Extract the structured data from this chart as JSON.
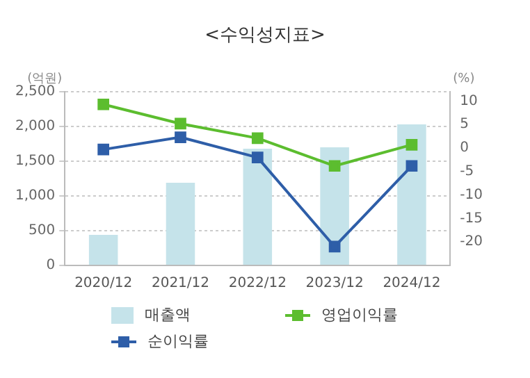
{
  "chart_data": {
    "type": "bar",
    "title": "<수익성지표>",
    "ylabel": "(억원)",
    "y2label": "(%)",
    "categories": [
      "2020/12",
      "2021/12",
      "2022/12",
      "2023/12",
      "2024/12"
    ],
    "series": [
      {
        "name": "매출액",
        "color": "#c5e3ea",
        "values": [
          440,
          1190,
          1680,
          1700,
          2030
        ]
      },
      {
        "name": "영업이익률",
        "type": "line",
        "axis": "y2",
        "color": "#5cbd2f",
        "values": [
          9.3,
          5.2,
          2.1,
          -3.8,
          0.7
        ]
      },
      {
        "name": "순이익률",
        "type": "line",
        "axis": "y2",
        "color": "#2e5ea8",
        "values": [
          -0.3,
          2.3,
          -2.0,
          -21,
          -3.8
        ]
      }
    ],
    "ylim": [
      0,
      2500
    ],
    "yticks": [
      0,
      500,
      {
        "value": 1000,
        "label": "1,000"
      },
      {
        "value": 1500,
        "label": "1,500"
      },
      {
        "value": 2000,
        "label": "2,000"
      },
      {
        "value": 2500,
        "label": "2,500"
      }
    ],
    "y2lim": [
      -25,
      12
    ],
    "y2ticks": [
      -20,
      -15,
      -10,
      -5,
      0,
      5,
      10
    ],
    "grid": "y",
    "legend": "bottom",
    "marker": "square"
  }
}
